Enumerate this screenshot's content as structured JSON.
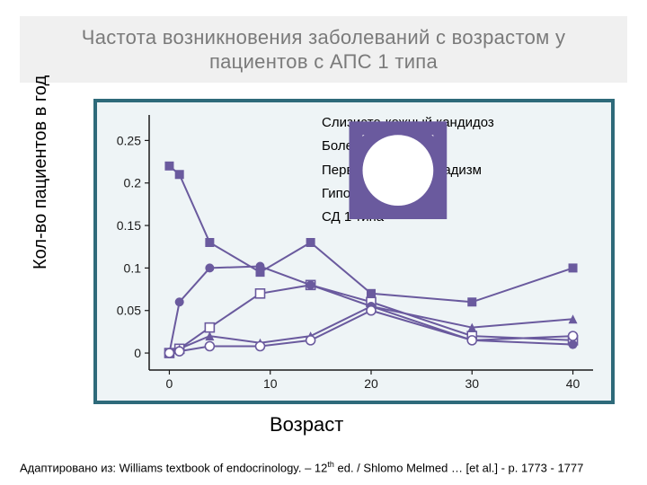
{
  "title": "Частота возникновения заболеваний с возрастом у пациентов с АПС 1 типа",
  "ylabel": "Кол-во пациентов в год",
  "xlabel": "Возраст",
  "citation_prefix": "Адаптировано из: Williams textbook of endocrinology. – 12",
  "citation_suffix": " ed. / Shlomo Melmed … [et al.] - p. 1773 - 1777",
  "citation_super": "th",
  "chart": {
    "type": "line",
    "background_color": "#eef4f6",
    "border_color": "#2e6a7a",
    "axis_color": "#1a1a1a",
    "series_color": "#6a5a9e",
    "xlim": [
      -2,
      42
    ],
    "ylim": [
      -0.02,
      0.28
    ],
    "xticks": [
      0,
      10,
      20,
      30,
      40
    ],
    "yticks": [
      0,
      0.05,
      0.1,
      0.15,
      0.2,
      0.25
    ],
    "ytick_labels": [
      "0",
      "0.05",
      "0.1",
      "0.15",
      "0.2",
      "0.25"
    ],
    "xtick_labels": [
      "0",
      "10",
      "20",
      "30",
      "40"
    ],
    "tick_fontsize": 14,
    "line_width": 2,
    "marker_size": 5,
    "legend": [
      {
        "marker": "square-filled",
        "label": "Слизисто-кожный кандидоз"
      },
      {
        "marker": "square-open",
        "label": "Болезнь Аддисона"
      },
      {
        "marker": "triangle-filled",
        "label": "Первичный гипогонадизм"
      },
      {
        "marker": "circle-filled",
        "label": "Гипопаратиреоз"
      },
      {
        "marker": "circle-open",
        "label": "СД 1 типа"
      }
    ],
    "series": [
      {
        "name": "Слизисто-кожный кандидоз",
        "marker": "square-filled",
        "x": [
          0,
          1,
          4,
          9,
          14,
          20,
          30,
          40
        ],
        "y": [
          0.22,
          0.21,
          0.13,
          0.095,
          0.13,
          0.07,
          0.06,
          0.1
        ]
      },
      {
        "name": "Болезнь Аддисона",
        "marker": "square-open",
        "x": [
          0,
          1,
          4,
          9,
          14,
          20,
          30,
          40
        ],
        "y": [
          0.0,
          0.005,
          0.03,
          0.07,
          0.08,
          0.06,
          0.02,
          0.015
        ]
      },
      {
        "name": "Первичный гипогонадизм",
        "marker": "triangle-filled",
        "x": [
          0,
          1,
          4,
          9,
          14,
          20,
          30,
          40
        ],
        "y": [
          0.0,
          0.005,
          0.02,
          0.012,
          0.02,
          0.055,
          0.03,
          0.04
        ]
      },
      {
        "name": "Гипопаратиреоз",
        "marker": "circle-filled",
        "x": [
          0,
          1,
          4,
          9,
          14,
          20,
          30,
          40
        ],
        "y": [
          0.0,
          0.06,
          0.1,
          0.102,
          0.08,
          0.055,
          0.015,
          0.01
        ]
      },
      {
        "name": "СД 1 типа",
        "marker": "circle-open",
        "x": [
          0,
          1,
          4,
          9,
          14,
          20,
          30,
          40
        ],
        "y": [
          0.0,
          0.002,
          0.008,
          0.008,
          0.015,
          0.05,
          0.015,
          0.02
        ]
      }
    ]
  }
}
